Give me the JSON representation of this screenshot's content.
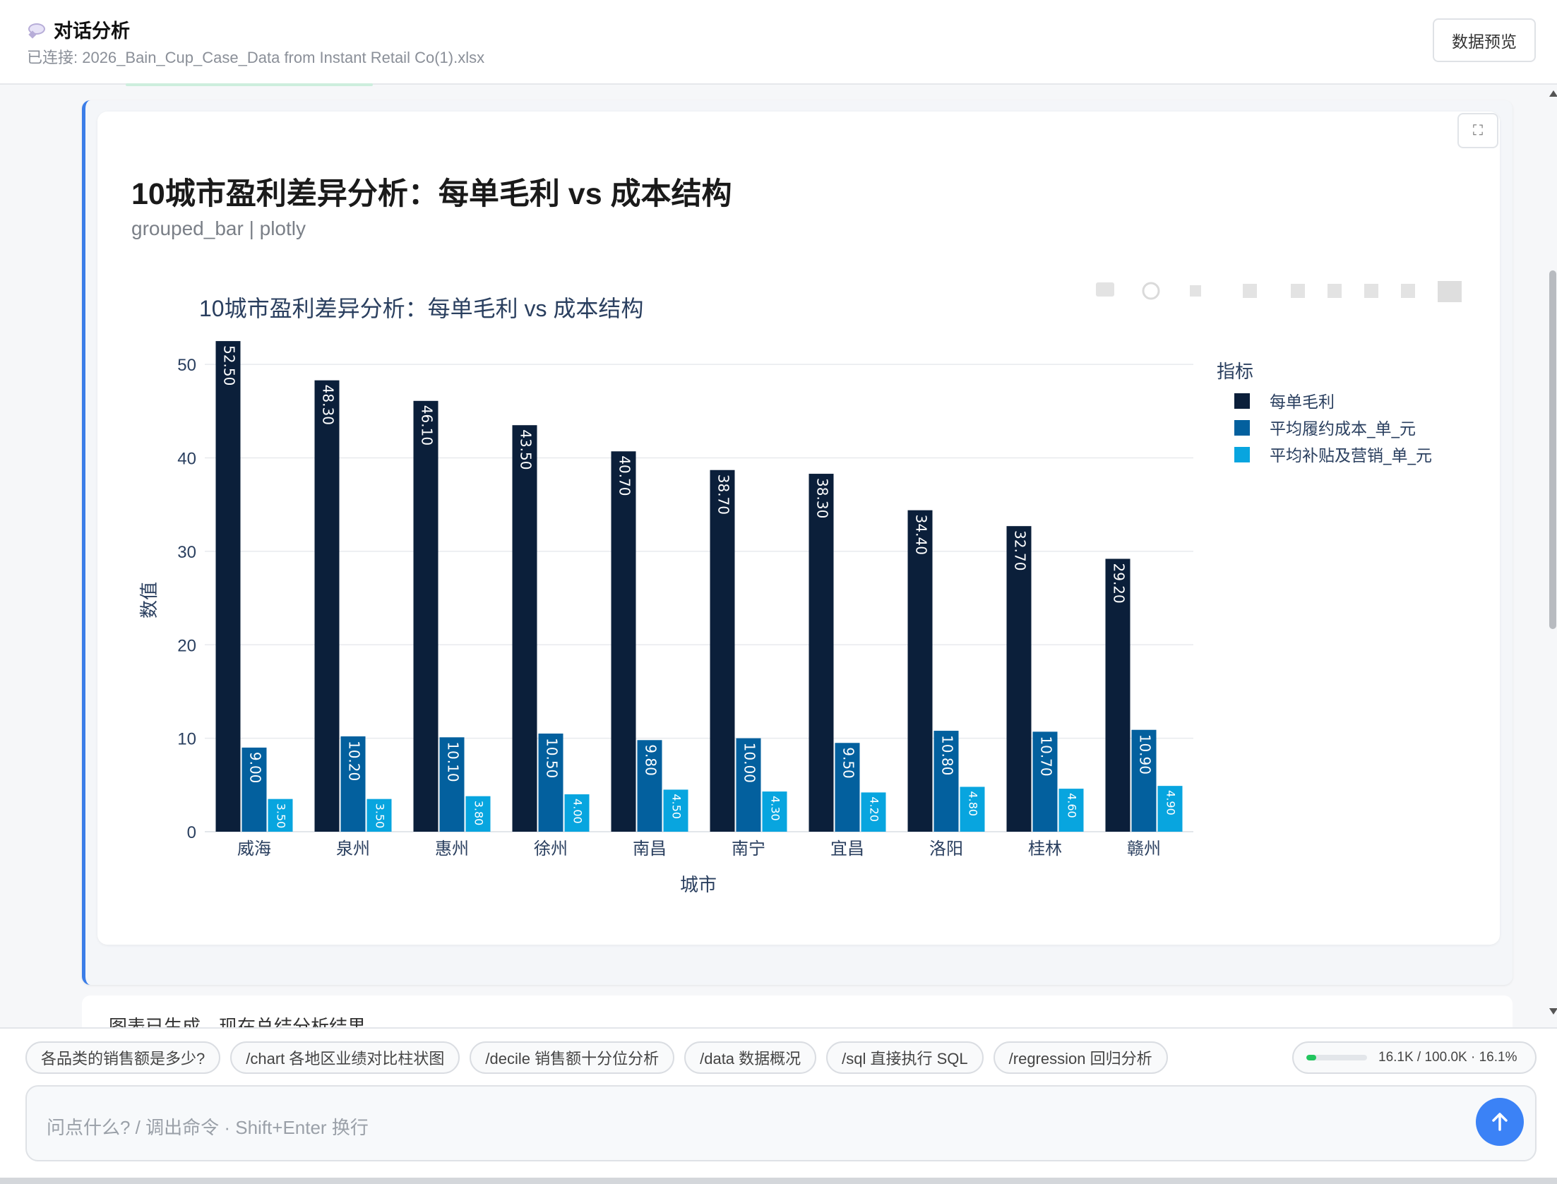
{
  "header": {
    "title": "对话分析",
    "connection": "已连接: 2026_Bain_Cup_Case_Data from Instant Retail Co(1).xlsx",
    "preview_button": "数据预览"
  },
  "card": {
    "heading": "10城市盈利差异分析：每单毛利 vs 成本结构",
    "meta": "grouped_bar | plotly",
    "expand_icon": "⛶"
  },
  "chart_data": {
    "type": "bar",
    "title": "10城市盈利差异分析：每单毛利 vs 成本结构",
    "xlabel": "城市",
    "ylabel": "数值",
    "ylim": [
      0,
      55
    ],
    "yticks": [
      0,
      10,
      20,
      30,
      40,
      50
    ],
    "grid": true,
    "legend_position": "right",
    "legend_title": "指标",
    "categories": [
      "威海",
      "泉州",
      "惠州",
      "徐州",
      "南昌",
      "南宁",
      "宜昌",
      "洛阳",
      "桂林",
      "赣州"
    ],
    "series": [
      {
        "name": "每单毛利",
        "color": "#0b1f3a",
        "values": [
          52.5,
          48.3,
          46.1,
          43.5,
          40.7,
          38.7,
          38.3,
          34.4,
          32.7,
          29.2
        ],
        "labels": [
          "52.50",
          "48.30",
          "46.10",
          "43.50",
          "40.70",
          "38.70",
          "38.30",
          "34.40",
          "32.70",
          "29.20"
        ]
      },
      {
        "name": "平均履约成本_单_元",
        "color": "#03609e",
        "values": [
          9.0,
          10.2,
          10.1,
          10.5,
          9.8,
          10.0,
          9.5,
          10.8,
          10.7,
          10.9
        ],
        "labels": [
          "9.00",
          "10.20",
          "10.10",
          "10.50",
          "9.80",
          "10.00",
          "9.50",
          "10.80",
          "10.70",
          "10.90"
        ]
      },
      {
        "name": "平均补贴及营销_单_元",
        "color": "#08a5df",
        "values": [
          3.5,
          3.5,
          3.8,
          4.0,
          4.5,
          4.3,
          4.2,
          4.8,
          4.6,
          4.9
        ],
        "labels": [
          "3.50",
          "3.50",
          "3.80",
          "4.00",
          "4.50",
          "4.30",
          "4.20",
          "4.80",
          "4.60",
          "4.90"
        ]
      }
    ]
  },
  "next_message": {
    "text": "图表已生成，现在总结分析结果"
  },
  "suggestions": [
    "各品类的销售额是多少?",
    "/chart 各地区业绩对比柱状图",
    "/decile 销售额十分位分析",
    "/data 数据概况",
    "/sql 直接执行 SQL",
    "/regression 回归分析"
  ],
  "tokens": {
    "text": "16.1K / 100.0K · 16.1%",
    "fraction": 0.161,
    "color": "#22c55e"
  },
  "input": {
    "placeholder": "问点什么?   /  调出命令  ·  Shift+Enter 换行"
  },
  "send_icon": "arrow-up-icon"
}
